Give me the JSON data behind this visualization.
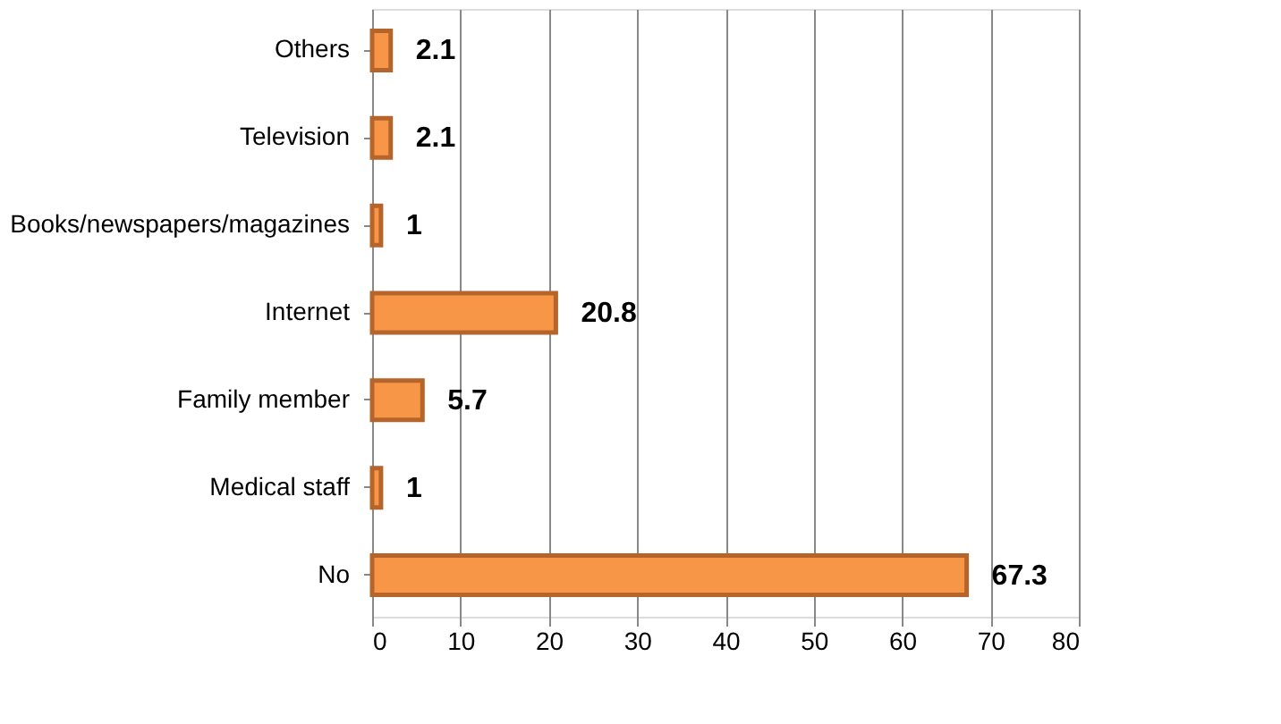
{
  "chart_data": {
    "type": "bar",
    "orientation": "horizontal",
    "categories": [
      "Others",
      "Television",
      "Books/newspapers/magazines",
      "Internet",
      "Family member",
      "Medical staff",
      "No"
    ],
    "values": [
      2.1,
      2.1,
      1,
      20.8,
      5.7,
      1,
      67.3
    ],
    "color": "#f79646",
    "xlim": [
      0,
      80
    ],
    "xticks": [
      0,
      10,
      20,
      30,
      40,
      50,
      60,
      70,
      80
    ],
    "grid": "x",
    "data_labels": true
  }
}
